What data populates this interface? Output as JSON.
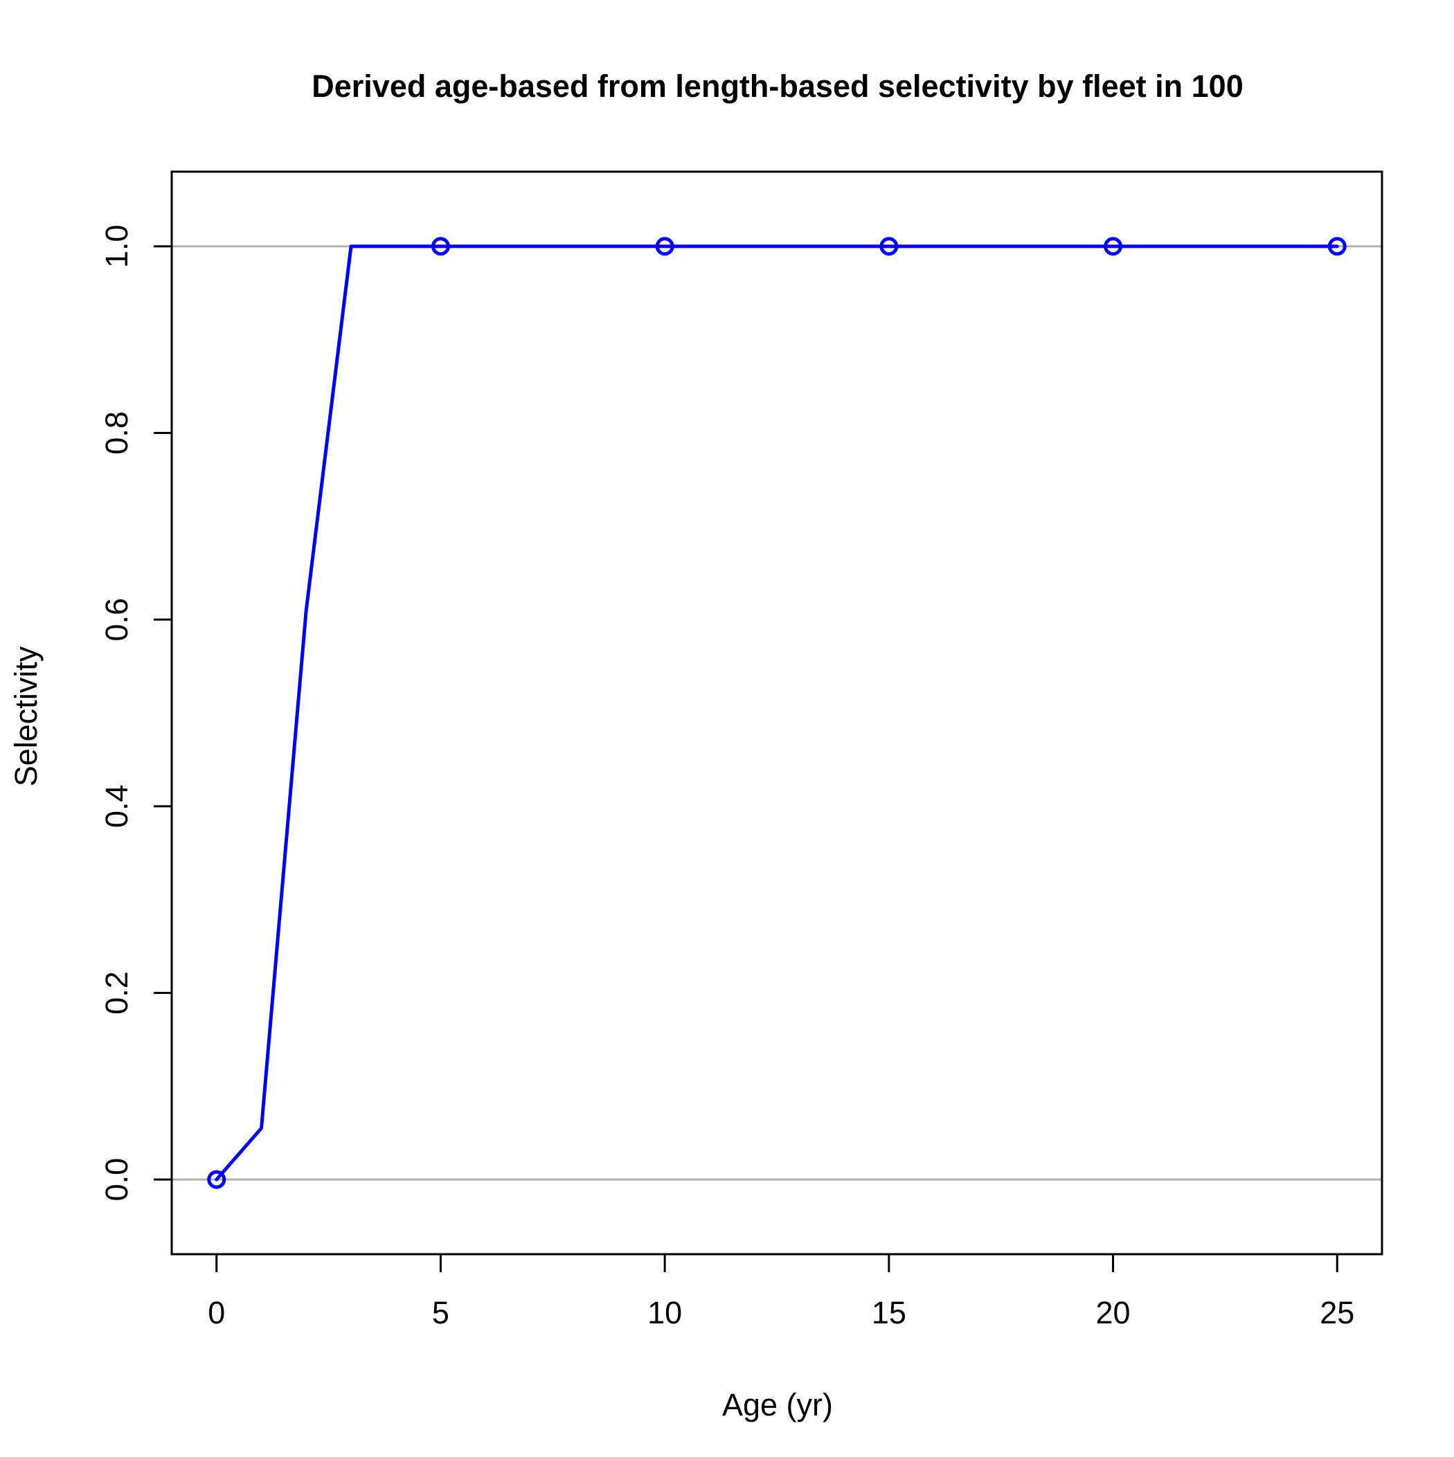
{
  "chart_data": {
    "type": "line",
    "title": "Derived age-based from length-based selectivity by fleet in 100",
    "xlabel": "Age (yr)",
    "ylabel": "Selectivity",
    "xlim": [
      -1,
      26
    ],
    "ylim": [
      -0.08,
      1.08
    ],
    "x_ticks": [
      0,
      5,
      10,
      15,
      20,
      25
    ],
    "y_ticks": [
      0.0,
      0.2,
      0.4,
      0.6,
      0.8,
      1.0
    ],
    "x_tick_labels": [
      "0",
      "5",
      "10",
      "15",
      "20",
      "25"
    ],
    "y_tick_labels": [
      "0.0",
      "0.2",
      "0.4",
      "0.6",
      "0.8",
      "1.0"
    ],
    "reference_lines": [
      0,
      1
    ],
    "reference_line_color": "#b3b3b3",
    "series": [
      {
        "color": "#0000ff",
        "x": [
          0,
          1,
          2,
          3,
          4,
          5,
          6,
          7,
          8,
          9,
          10,
          11,
          12,
          13,
          14,
          15,
          16,
          17,
          18,
          19,
          20,
          21,
          22,
          23,
          24,
          25
        ],
        "y": [
          0.0,
          0.055,
          0.61,
          1.0,
          1.0,
          1.0,
          1.0,
          1.0,
          1.0,
          1.0,
          1.0,
          1.0,
          1.0,
          1.0,
          1.0,
          1.0,
          1.0,
          1.0,
          1.0,
          1.0,
          1.0,
          1.0,
          1.0,
          1.0,
          1.0,
          1.0
        ],
        "marker_x": [
          0,
          5,
          10,
          15,
          20,
          25
        ],
        "marker_y": [
          0.0,
          1.0,
          1.0,
          1.0,
          1.0,
          1.0
        ]
      }
    ],
    "grid": false,
    "legend": "none"
  }
}
